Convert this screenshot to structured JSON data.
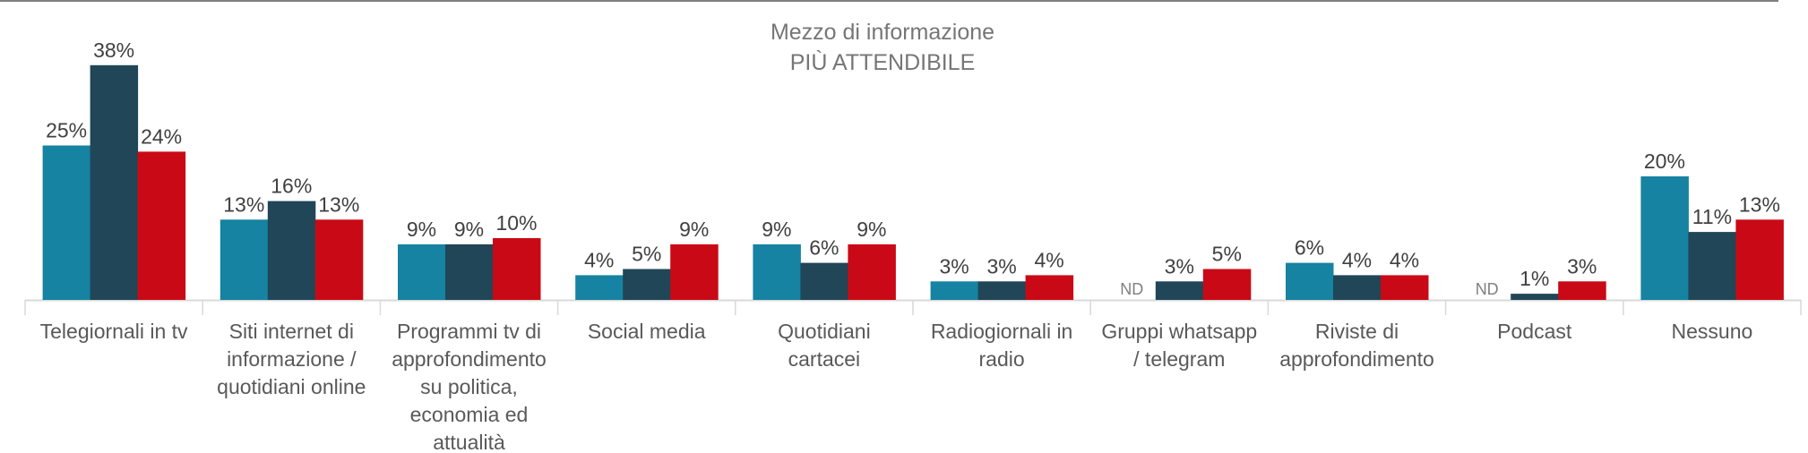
{
  "chart_data": {
    "type": "bar",
    "title": [
      "Mezzo di informazione",
      "PIÙ ATTENDIBILE"
    ],
    "xlabel": "",
    "ylabel": "",
    "ylim": [
      0,
      40
    ],
    "grid": false,
    "legend": "none",
    "categories": [
      [
        "Telegiornali in tv"
      ],
      [
        "Siti internet di",
        "informazione /",
        "quotidiani online"
      ],
      [
        "Programmi tv di",
        "approfondimento",
        "su politica,",
        "economia ed",
        "attualità"
      ],
      [
        "Social media"
      ],
      [
        "Quotidiani",
        "cartacei"
      ],
      [
        "Radiogiornali in",
        "radio"
      ],
      [
        "Gruppi whatsapp",
        "/ telegram"
      ],
      [
        "Riviste di",
        "approfondimento"
      ],
      [
        "Podcast"
      ],
      [
        "Nessuno"
      ]
    ],
    "missing_label": "ND",
    "series": [
      {
        "name": "series-1",
        "color": "#1583A1",
        "values": [
          25,
          13,
          9,
          4,
          9,
          3,
          null,
          6,
          null,
          20
        ]
      },
      {
        "name": "series-2",
        "color": "#204657",
        "values": [
          38,
          16,
          9,
          5,
          6,
          3,
          3,
          4,
          1,
          11
        ]
      },
      {
        "name": "series-3",
        "color": "#C90A16",
        "values": [
          24,
          13,
          10,
          9,
          9,
          4,
          5,
          4,
          3,
          13
        ]
      }
    ]
  }
}
